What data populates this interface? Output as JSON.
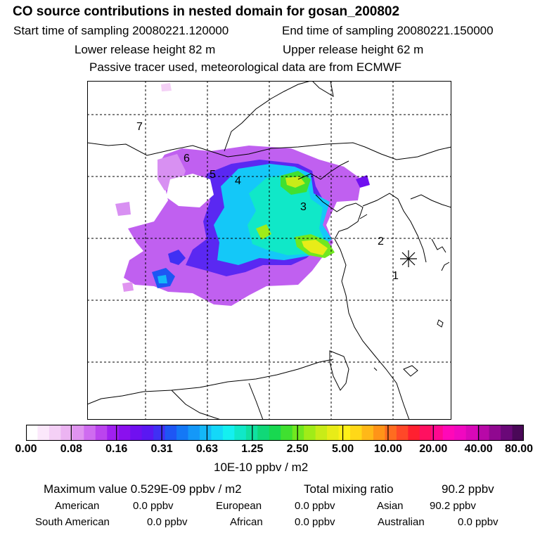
{
  "header": {
    "title": "CO  source contributions in nested domain for gosan_200802",
    "start_label": "Start time of sampling 20080221.120000",
    "end_label": "End time of sampling 20080221.150000",
    "lower_label": "Lower release height   82 m",
    "upper_label": "Upper release height   62 m",
    "note": "Passive tracer used, meteorological data are from ECMWF"
  },
  "map": {
    "markers": [
      "1",
      "2",
      "3",
      "4",
      "5",
      "6",
      "7"
    ],
    "station_symbol": "asterisk"
  },
  "colorbar": {
    "tick_labels": [
      "0.00",
      "0.08",
      "0.16",
      "0.31",
      "0.63",
      "1.25",
      "2.50",
      "5.00",
      "10.00",
      "20.00",
      "40.00",
      "80.00"
    ],
    "unit": "10E-10 ppbv / m2",
    "colors": [
      "#ffffff",
      "#fbe8fb",
      "#f4d0f6",
      "#ecb4f2",
      "#e094f0",
      "#cf6cf0",
      "#bb44ee",
      "#a020f0",
      "#8a10ee",
      "#7010f0",
      "#5a18f2",
      "#4030f4",
      "#1e56f4",
      "#1478f6",
      "#1498f8",
      "#14b8f8",
      "#14d8f8",
      "#14f0f0",
      "#10e8c8",
      "#10e0a0",
      "#10d878",
      "#18d850",
      "#40e030",
      "#70e820",
      "#a0ec18",
      "#c8ec18",
      "#e8ec18",
      "#fff018",
      "#ffd818",
      "#ffb818",
      "#ff9418",
      "#ff6c20",
      "#ff4828",
      "#ff2030",
      "#ff1060",
      "#ff0890",
      "#ff08b8",
      "#f008c0",
      "#d808b8",
      "#b808a8",
      "#900890",
      "#6a0878",
      "#4a0858"
    ]
  },
  "footer": {
    "max_label": "Maximum value  0.529E-09 ppbv / m2",
    "total_label": "Total mixing ratio",
    "total_value": "90.2 ppbv",
    "regions": [
      {
        "name": "American",
        "value": "0.0 ppbv"
      },
      {
        "name": "European",
        "value": "0.0 ppbv"
      },
      {
        "name": "Asian",
        "value": "90.2 ppbv"
      },
      {
        "name": "South American",
        "value": "0.0 ppbv"
      },
      {
        "name": "African",
        "value": "0.0 ppbv"
      },
      {
        "name": "Australian",
        "value": "0.0 ppbv"
      }
    ]
  }
}
